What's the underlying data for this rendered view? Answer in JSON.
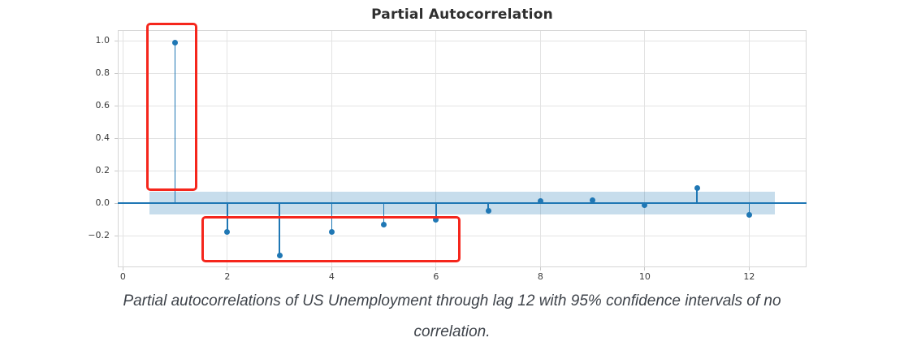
{
  "chart_data": {
    "type": "stem",
    "title": "Partial Autocorrelation",
    "xlabel": "",
    "ylabel": "",
    "x": [
      1,
      2,
      3,
      4,
      5,
      6,
      7,
      8,
      9,
      10,
      11,
      12
    ],
    "values": [
      0.99,
      -0.175,
      -0.32,
      -0.175,
      -0.13,
      -0.1,
      -0.048,
      0.012,
      0.02,
      -0.012,
      0.095,
      -0.072
    ],
    "xlim": [
      -0.1,
      13.1
    ],
    "ylim": [
      -0.395,
      1.065
    ],
    "xticks": [
      0,
      2,
      4,
      6,
      8,
      10,
      12
    ],
    "yticks": [
      1.0,
      0.8,
      0.6,
      0.4,
      0.2,
      0.0,
      -0.2
    ],
    "grid": true,
    "legend": null,
    "confidence_band": {
      "x0": 0.5,
      "x1": 12.5,
      "y0": -0.068,
      "y1": 0.068,
      "meaning": "95% confidence interval of no correlation"
    },
    "annotations": [
      {
        "label": "highlight-lag-1",
        "x0": 0.44,
        "x1": 1.42,
        "y0": 0.075,
        "y1": 1.11
      },
      {
        "label": "highlight-lags-2-6",
        "x0": 1.5,
        "x1": 6.47,
        "y0": -0.365,
        "y1": -0.08
      }
    ]
  },
  "caption": {
    "full_text": "Partial autocorrelations of US Unemployment through lag 12 with 95% confidence intervals of no correlation.",
    "lines": [
      "Partial autocorrelations of US Unemployment through lag 12 with 95% confidence intervals of no",
      "correlation."
    ]
  },
  "colors": {
    "stem_blue": "#1f77b4",
    "band_fill": "rgba(31,119,180,0.25)",
    "annotation_red": "#f5261c",
    "gridline": "#e3e3e3",
    "spine": "#d6d6d6",
    "tick_label": "#3d3d3d",
    "title_text": "#2f2f2f",
    "caption_text": "#3e434a"
  }
}
